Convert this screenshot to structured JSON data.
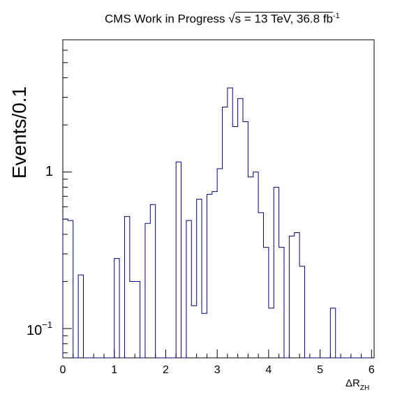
{
  "header": {
    "title_prefix": "CMS Work in Progress",
    "sqrt_symbol": "√",
    "title_energy": "s = 13 TeV, 36.8 fb",
    "title_exponent": "-1"
  },
  "colors": {
    "histogram": "#00007f",
    "axis": "#000000",
    "background": "#ffffff"
  },
  "chart_data": {
    "type": "histogram",
    "ylabel": "Events/0.1",
    "xlabel_main": "ΔR",
    "xlabel_sub": "ZH",
    "xscale": "linear",
    "yscale": "log",
    "xlim": [
      0,
      6.05
    ],
    "ylim": [
      0.065,
      7.0
    ],
    "x_ticks": [
      0,
      1,
      2,
      3,
      4,
      5,
      6
    ],
    "x_tick_labels": [
      "0",
      "1",
      "2",
      "3",
      "4",
      "5",
      "6"
    ],
    "y_tick_1_label": "1",
    "y_tick_01_base": "10",
    "y_tick_01_exp": "−1",
    "bin_width": 0.1,
    "bins": [
      {
        "x": 0.0,
        "y": 0.5
      },
      {
        "x": 0.1,
        "y": 0.49
      },
      {
        "x": 0.3,
        "y": 0.22
      },
      {
        "x": 1.0,
        "y": 0.28
      },
      {
        "x": 1.2,
        "y": 0.52
      },
      {
        "x": 1.3,
        "y": 0.2
      },
      {
        "x": 1.4,
        "y": 0.2
      },
      {
        "x": 1.6,
        "y": 0.47
      },
      {
        "x": 1.7,
        "y": 0.62
      },
      {
        "x": 2.2,
        "y": 1.16
      },
      {
        "x": 2.4,
        "y": 0.49
      },
      {
        "x": 2.5,
        "y": 0.14
      },
      {
        "x": 2.6,
        "y": 0.67
      },
      {
        "x": 2.7,
        "y": 0.125
      },
      {
        "x": 2.8,
        "y": 0.72
      },
      {
        "x": 2.9,
        "y": 0.75
      },
      {
        "x": 3.0,
        "y": 1.05
      },
      {
        "x": 3.1,
        "y": 2.6
      },
      {
        "x": 3.2,
        "y": 3.45
      },
      {
        "x": 3.3,
        "y": 1.95
      },
      {
        "x": 3.4,
        "y": 2.95
      },
      {
        "x": 3.5,
        "y": 2.1
      },
      {
        "x": 3.6,
        "y": 0.93
      },
      {
        "x": 3.7,
        "y": 1.0
      },
      {
        "x": 3.8,
        "y": 0.55
      },
      {
        "x": 3.9,
        "y": 0.33
      },
      {
        "x": 4.0,
        "y": 0.135
      },
      {
        "x": 4.1,
        "y": 0.8
      },
      {
        "x": 4.2,
        "y": 0.33
      },
      {
        "x": 4.4,
        "y": 0.39
      },
      {
        "x": 4.5,
        "y": 0.41
      },
      {
        "x": 4.6,
        "y": 0.25
      },
      {
        "x": 5.2,
        "y": 0.135
      }
    ]
  }
}
